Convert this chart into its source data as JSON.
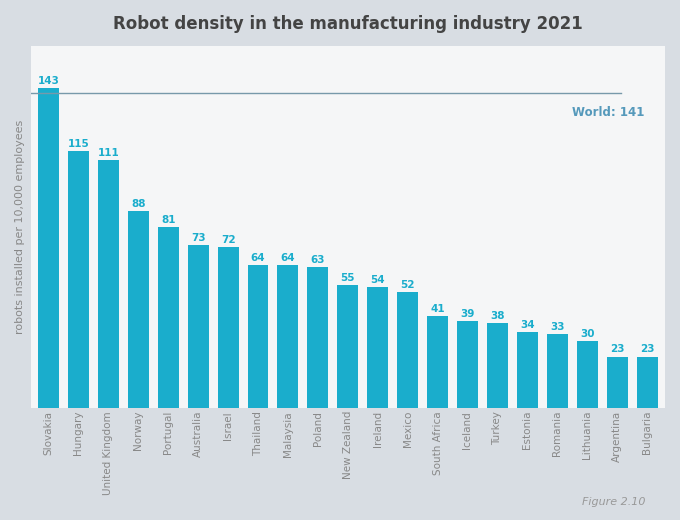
{
  "title": "Robot density in the manufacturing industry 2021",
  "ylabel": "robots installed per 10,000 employees",
  "categories": [
    "Slovakia",
    "Hungary",
    "United Kingdom",
    "Norway",
    "Portugal",
    "Australia",
    "Israel",
    "Thailand",
    "Malaysia",
    "Poland",
    "New Zealand",
    "Ireland",
    "Mexico",
    "South Africa",
    "Iceland",
    "Turkey",
    "Estonia",
    "Romania",
    "Lithuania",
    "Argentina",
    "Bulgaria"
  ],
  "values": [
    143,
    115,
    111,
    88,
    81,
    73,
    72,
    64,
    64,
    63,
    55,
    54,
    52,
    41,
    39,
    38,
    34,
    33,
    30,
    23,
    23
  ],
  "bar_color": "#1aadcc",
  "world_line": 141,
  "world_label": "World: 141",
  "world_line_color": "#7799aa",
  "world_label_color": "#5599bb",
  "figure_note": "Figure 2.10",
  "outer_bg_color": "#d8dde3",
  "card_bg_color": "#f5f6f7",
  "plot_bg_top": "#ffffff",
  "plot_bg_bottom": "#e8eaed",
  "ylim": [
    0,
    162
  ],
  "title_fontsize": 12,
  "tick_fontsize": 7.5,
  "value_fontsize": 7.5,
  "ylabel_fontsize": 8
}
